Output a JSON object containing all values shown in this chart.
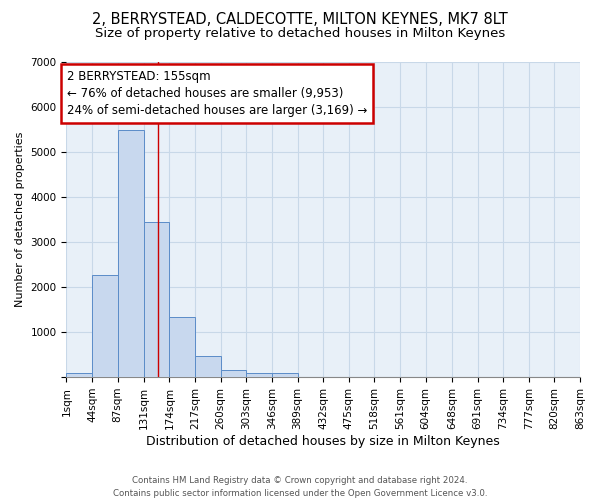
{
  "title1": "2, BERRYSTEAD, CALDECOTTE, MILTON KEYNES, MK7 8LT",
  "title2": "Size of property relative to detached houses in Milton Keynes",
  "xlabel": "Distribution of detached houses by size in Milton Keynes",
  "ylabel": "Number of detached properties",
  "bar_values": [
    100,
    2270,
    5480,
    3440,
    1330,
    470,
    160,
    80,
    80,
    0,
    0,
    0,
    0,
    0,
    0,
    0,
    0,
    0,
    0,
    0
  ],
  "bin_edges": [
    1,
    44,
    87,
    131,
    174,
    217,
    260,
    303,
    346,
    389,
    432,
    475,
    518,
    561,
    604,
    648,
    691,
    734,
    777,
    820,
    863
  ],
  "xlabels": [
    "1sqm",
    "44sqm",
    "87sqm",
    "131sqm",
    "174sqm",
    "217sqm",
    "260sqm",
    "303sqm",
    "346sqm",
    "389sqm",
    "432sqm",
    "475sqm",
    "518sqm",
    "561sqm",
    "604sqm",
    "648sqm",
    "691sqm",
    "734sqm",
    "777sqm",
    "820sqm",
    "863sqm"
  ],
  "bar_color": "#c8d8ee",
  "bar_edge_color": "#5b8cc8",
  "vline_x": 155,
  "vline_color": "#cc0000",
  "ylim": [
    0,
    7000
  ],
  "yticks": [
    0,
    1000,
    2000,
    3000,
    4000,
    5000,
    6000,
    7000
  ],
  "annotation_line1": "2 BERRYSTEAD: 155sqm",
  "annotation_line2": "← 76% of detached houses are smaller (9,953)",
  "annotation_line3": "24% of semi-detached houses are larger (3,169) →",
  "annotation_box_color": "#cc0000",
  "grid_color": "#c8d8e8",
  "bg_color": "#e8f0f8",
  "footer": "Contains HM Land Registry data © Crown copyright and database right 2024.\nContains public sector information licensed under the Open Government Licence v3.0.",
  "title1_fontsize": 10.5,
  "title2_fontsize": 9.5,
  "annot_fontsize": 8.5,
  "ylabel_fontsize": 8,
  "xlabel_fontsize": 9,
  "tick_fontsize": 7.5
}
